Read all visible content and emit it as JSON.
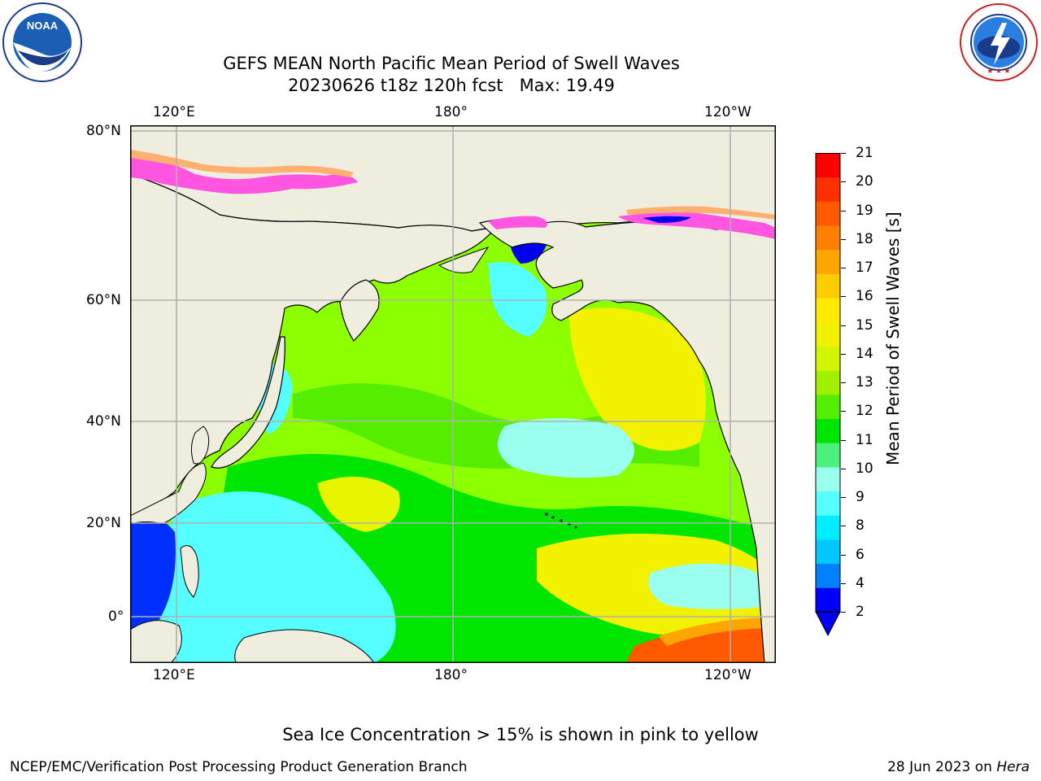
{
  "header": {
    "title_line1": "GEFS MEAN North Pacific Mean Period of Swell Waves",
    "title_line2": "20230626 t18z 120h fcst   Max: 19.49"
  },
  "logos": {
    "noaa": {
      "text": "NOAA",
      "ring_text": "NATIONAL OCEANIC AND ATMOSPHERIC ADMINISTRATION · U.S. DEPARTMENT OF COMMERCE"
    },
    "nws": {
      "ring_text": "NATIONAL WEATHER SERVICE"
    }
  },
  "map": {
    "lon_labels_top": [
      "120°E",
      "180°",
      "120°W"
    ],
    "lon_labels_bottom": [
      "120°E",
      "180°",
      "120°W"
    ],
    "lat_labels": [
      "80°N",
      "60°N",
      "40°N",
      "20°N",
      "0°"
    ],
    "colors": {
      "land": "#efedde",
      "ocean_period_8": "#55ffff",
      "ocean_period_10": "#00e600",
      "ocean_period_12": "#8cff00",
      "ocean_period_14": "#f2f200",
      "ocean_period_18": "#ff3000",
      "ice_pink": "#ff55e0",
      "ice_orange": "#ffb070",
      "grid": "#b0b0b0"
    }
  },
  "colorbar": {
    "label": "Mean Period of Swell Waves [s]",
    "ticks": [
      "21",
      "20",
      "19",
      "18",
      "17",
      "16",
      "15",
      "14",
      "13",
      "12",
      "11",
      "10",
      "9",
      "8",
      "6",
      "4",
      "2"
    ],
    "colors_top_to_bottom": [
      "#ff0000",
      "#ff3000",
      "#ff5a00",
      "#ff8000",
      "#ffa500",
      "#ffcc00",
      "#ffea00",
      "#f2f200",
      "#d4f500",
      "#a0f000",
      "#55ee00",
      "#00e600",
      "#4cf07c",
      "#99ffee",
      "#55ffff",
      "#00eeff",
      "#00c8ff",
      "#0080ff",
      "#0000ff"
    ],
    "extend_color": "#0000ee"
  },
  "notes": {
    "sea_ice": "Sea Ice Concentration > 15% is shown in pink to yellow"
  },
  "footer": {
    "left": "NCEP/EMC/Verification Post Processing Product Generation Branch",
    "right_date": "28 Jun 2023 on ",
    "right_host": "Hera"
  }
}
